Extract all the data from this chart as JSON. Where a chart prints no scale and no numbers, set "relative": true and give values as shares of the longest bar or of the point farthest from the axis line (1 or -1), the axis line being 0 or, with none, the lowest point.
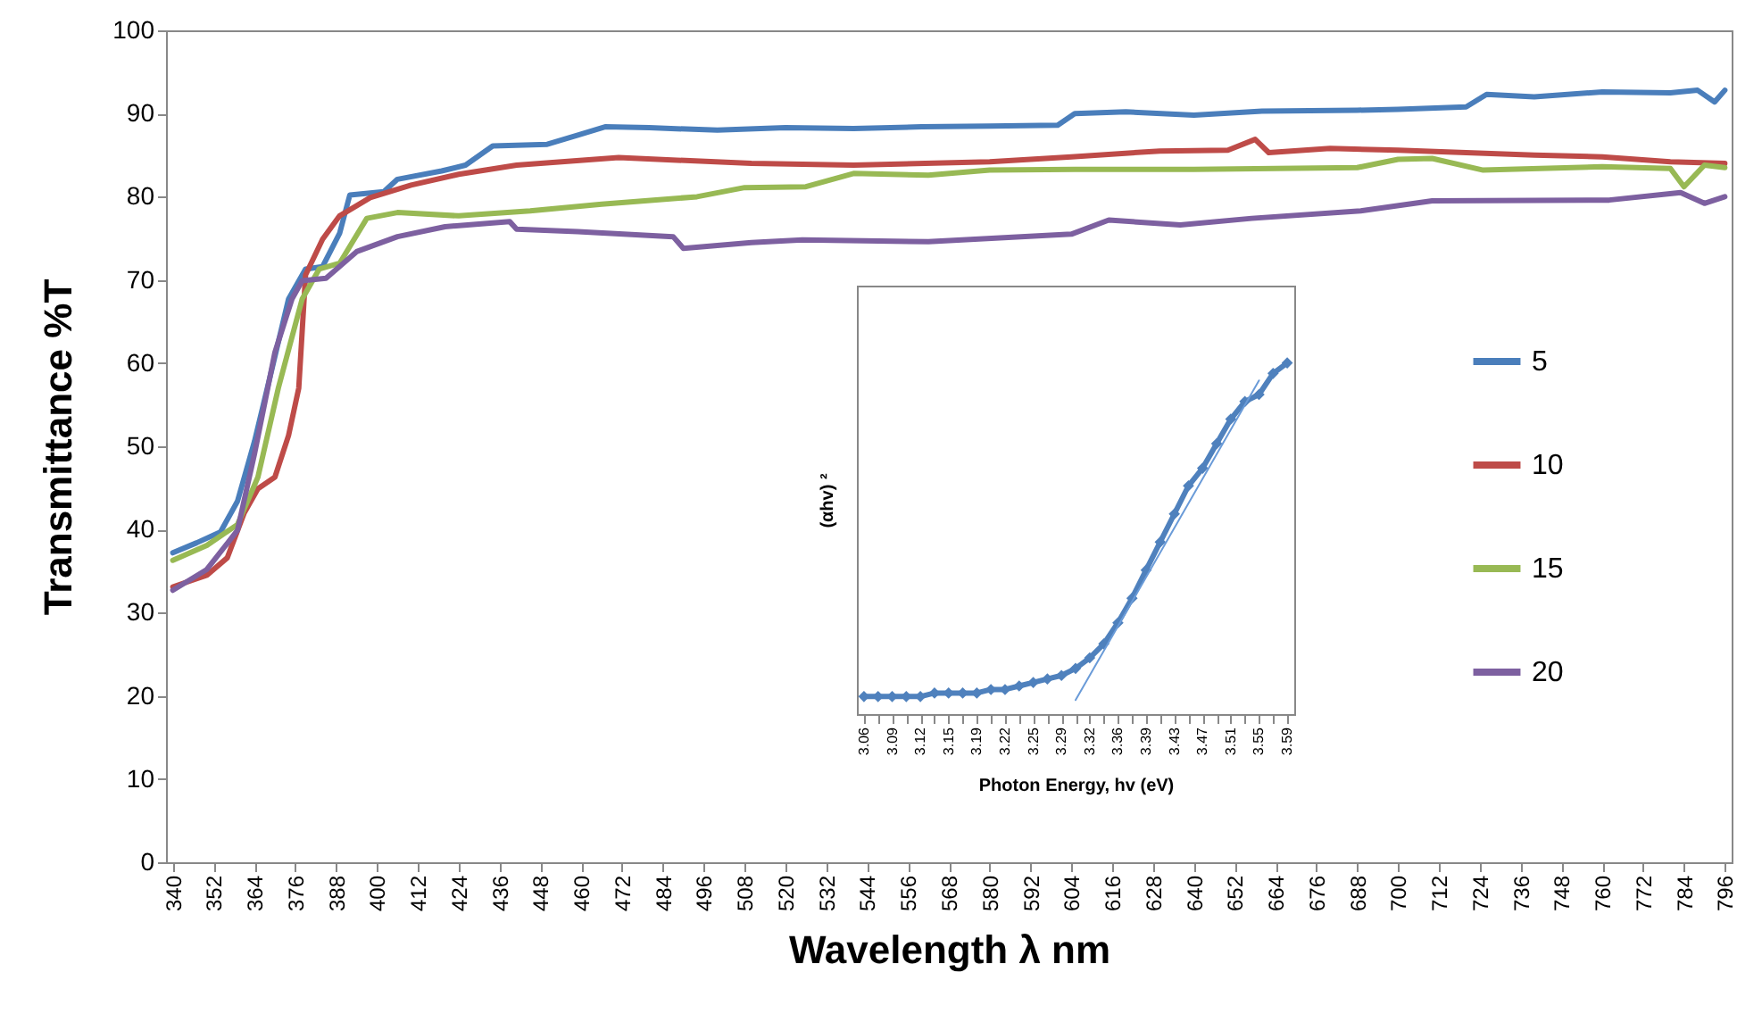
{
  "chart_data": [
    {
      "type": "line",
      "xlabel": "Wavelength λ nm",
      "ylabel": "Transmittance %T",
      "xlim": [
        338,
        798
      ],
      "xticks": [
        340,
        352,
        364,
        376,
        388,
        400,
        412,
        424,
        436,
        448,
        460,
        472,
        484,
        496,
        508,
        520,
        532,
        544,
        556,
        568,
        580,
        592,
        604,
        616,
        628,
        640,
        652,
        664,
        676,
        688,
        700,
        712,
        724,
        736,
        748,
        760,
        772,
        784,
        796
      ],
      "ylim": [
        0,
        100
      ],
      "yticks": [
        0,
        10,
        20,
        30,
        40,
        50,
        60,
        70,
        80,
        90,
        100
      ],
      "legend": "right",
      "series": [
        {
          "name": "5",
          "color": "#4a7ebb",
          "x": [
            340,
            347,
            354,
            359,
            364,
            369,
            374,
            379,
            384,
            389,
            392,
            402,
            406,
            419,
            426,
            434,
            450,
            459,
            467,
            480,
            500,
            520,
            540,
            560,
            580,
            600,
            605,
            620,
            640,
            660,
            688,
            700,
            720,
            726,
            740,
            760,
            780,
            788,
            793,
            796
          ],
          "values": [
            37.2,
            38.4,
            39.7,
            43.4,
            50.6,
            59.1,
            67.7,
            71.3,
            71.6,
            75.6,
            80.2,
            80.6,
            82.1,
            83.1,
            83.8,
            86.1,
            86.3,
            87.4,
            88.4,
            88.3,
            88.0,
            88.3,
            88.2,
            88.4,
            88.5,
            88.6,
            90.0,
            90.2,
            89.8,
            90.3,
            90.4,
            90.5,
            90.8,
            92.3,
            92.0,
            92.6,
            92.5,
            92.8,
            91.4,
            92.8
          ]
        },
        {
          "name": "10",
          "color": "#be4b48",
          "x": [
            340,
            350,
            356,
            361,
            365,
            370,
            374,
            377,
            379,
            384,
            389,
            398,
            410,
            424,
            441,
            471,
            510,
            540,
            580,
            604,
            630,
            650,
            658,
            662,
            680,
            700,
            720,
            740,
            760,
            780,
            796
          ],
          "values": [
            33.1,
            34.5,
            36.6,
            42,
            44.9,
            46.3,
            51.3,
            57,
            70.6,
            74.9,
            77.7,
            79.9,
            81.4,
            82.7,
            83.8,
            84.7,
            84.0,
            83.8,
            84.2,
            84.8,
            85.5,
            85.6,
            86.9,
            85.3,
            85.8,
            85.6,
            85.3,
            85.0,
            84.8,
            84.2,
            84.0
          ]
        },
        {
          "name": "15",
          "color": "#98b954",
          "x": [
            340,
            350,
            359,
            365,
            371,
            378,
            383,
            389,
            397,
            406,
            424,
            445,
            466,
            494,
            508,
            526,
            540,
            562,
            580,
            605,
            640,
            688,
            700,
            710,
            725,
            760,
            780,
            784,
            790,
            796
          ],
          "values": [
            36.3,
            38.1,
            40.6,
            46.3,
            57,
            67.7,
            71.3,
            72,
            77.4,
            78.1,
            77.7,
            78.3,
            79.1,
            80,
            81.1,
            81.2,
            82.8,
            82.6,
            83.2,
            83.3,
            83.3,
            83.5,
            84.5,
            84.6,
            83.2,
            83.6,
            83.4,
            81.2,
            83.8,
            83.5
          ]
        },
        {
          "name": "20",
          "color": "#7d60a0",
          "x": [
            340,
            350,
            359,
            364,
            370,
            375,
            378,
            385,
            394,
            406,
            420,
            439,
            441,
            459,
            487,
            490,
            510,
            525,
            562,
            604,
            615,
            636,
            657,
            689,
            710,
            762,
            783,
            790,
            796
          ],
          "values": [
            32.7,
            35.2,
            39.9,
            49.1,
            61.3,
            67.7,
            69.9,
            70.2,
            73.4,
            75.2,
            76.4,
            77,
            76.1,
            75.8,
            75.2,
            73.8,
            74.5,
            74.8,
            74.6,
            75.5,
            77.2,
            76.6,
            77.4,
            78.3,
            79.5,
            79.6,
            80.5,
            79.2,
            80
          ]
        }
      ]
    },
    {
      "type": "line",
      "xlabel": "Photon Energy, hv (eV)",
      "ylabel": "(αhv) ²",
      "relative": true,
      "marker": "diamond",
      "categories": [
        "3.06",
        null,
        "3.09",
        null,
        "3.12",
        null,
        "3.15",
        null,
        "3.19",
        null,
        "3.22",
        null,
        "3.25",
        null,
        "3.29",
        null,
        "3.32",
        null,
        "3.36",
        null,
        "3.39",
        null,
        "3.43",
        null,
        "3.47",
        null,
        "3.51",
        null,
        "3.55",
        null,
        "3.59"
      ],
      "series": [
        {
          "color": "#4f81bd",
          "values": [
            0.05,
            0.05,
            0.05,
            0.05,
            0.05,
            0.06,
            0.06,
            0.06,
            0.06,
            0.07,
            0.07,
            0.08,
            0.09,
            0.1,
            0.11,
            0.13,
            0.16,
            0.2,
            0.26,
            0.33,
            0.41,
            0.49,
            0.57,
            0.65,
            0.7,
            0.77,
            0.84,
            0.89,
            0.91,
            0.97,
            1
          ]
        },
        {
          "type": "line",
          "color": "#6a9bd8",
          "marker": "none",
          "values": [
            null,
            null,
            null,
            null,
            null,
            null,
            null,
            null,
            null,
            null,
            null,
            null,
            null,
            null,
            null,
            0.04,
            null,
            null,
            null,
            null,
            null,
            null,
            null,
            null,
            null,
            null,
            null,
            null,
            0.95,
            null,
            null
          ]
        }
      ]
    }
  ]
}
